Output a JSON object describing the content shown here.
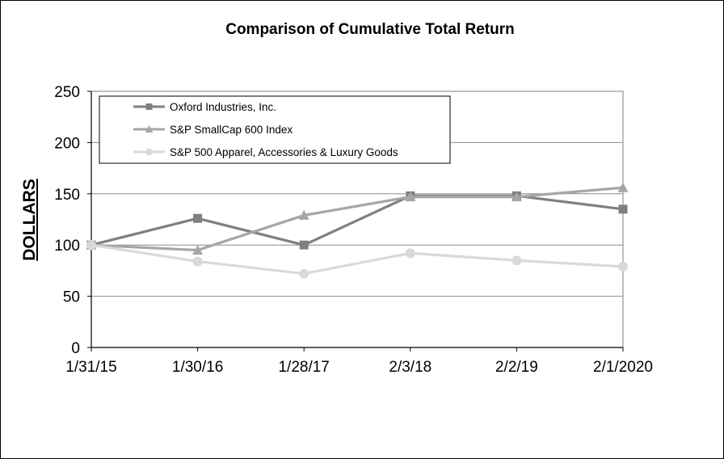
{
  "chart_data": {
    "type": "line",
    "title": "Comparison of Cumulative Total Return",
    "xlabel": "",
    "ylabel": "DOLLARS",
    "categories": [
      "1/31/15",
      "1/30/16",
      "1/28/17",
      "2/3/18",
      "2/2/19",
      "2/1/2020"
    ],
    "ylim": [
      0,
      250
    ],
    "yticks": [
      "0",
      "50",
      "100",
      "150",
      "200",
      "250"
    ],
    "grid": true,
    "legend_position": "top-left",
    "series": [
      {
        "name": "Oxford Industries, Inc.",
        "values": [
          100,
          126,
          100,
          148,
          148,
          135
        ],
        "color": "#808080",
        "marker": "square"
      },
      {
        "name": "S&P SmallCap 600 Index",
        "values": [
          100,
          95,
          129,
          147,
          147,
          156
        ],
        "color": "#a6a6a6",
        "marker": "triangle"
      },
      {
        "name": "S&P 500 Apparel, Accessories & Luxury Goods",
        "values": [
          100,
          84,
          72,
          92,
          85,
          79
        ],
        "color": "#d9d9d9",
        "marker": "circle"
      }
    ]
  }
}
